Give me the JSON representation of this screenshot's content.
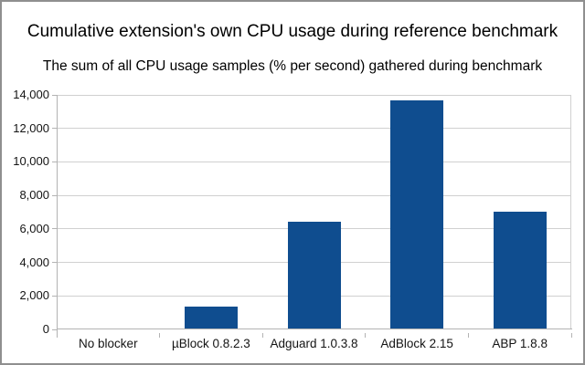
{
  "chart_data": {
    "type": "bar",
    "title": "Cumulative extension's own CPU usage during reference benchmark",
    "subtitle": "The sum of all CPU usage samples (% per second) gathered during benchmark",
    "categories": [
      "No blocker",
      "µBlock 0.8.2.3",
      "Adguard 1.0.3.8",
      "AdBlock 2.15",
      "ABP 1.8.8"
    ],
    "values": [
      0,
      1300,
      6400,
      13600,
      7000
    ],
    "xlabel": "",
    "ylabel": "",
    "ylim": [
      0,
      14000
    ],
    "ytick_step": 2000,
    "ytick_labels": [
      "0",
      "2,000",
      "4,000",
      "6,000",
      "8,000",
      "10,000",
      "12,000",
      "14,000"
    ],
    "grid": true,
    "legend": "none",
    "colors": {
      "bar": "#0f4d8f",
      "gridline": "#d0d0d0",
      "axis": "#b3b3b3",
      "text": "#141414",
      "frame_border": "#8f8f8f",
      "background": "#ffffff"
    }
  }
}
